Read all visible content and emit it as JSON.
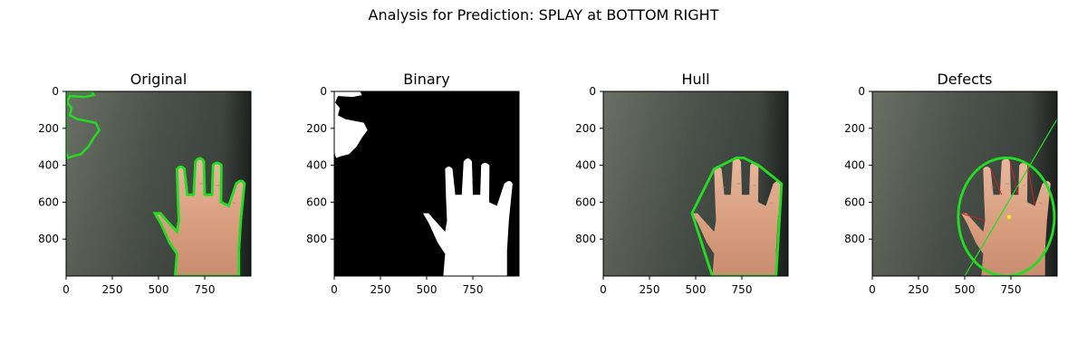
{
  "figure": {
    "suptitle": "Analysis for Prediction: SPLAY at BOTTOM RIGHT"
  },
  "chart_data": [
    {
      "type": "image",
      "title": "Original",
      "xlim": [
        0,
        1000
      ],
      "ylim": [
        1000,
        0
      ],
      "x_ticks": [
        0,
        250,
        500,
        750
      ],
      "y_ticks": [
        0,
        200,
        400,
        600,
        800
      ],
      "overlay": "contour",
      "overlay_color": "#22dd22"
    },
    {
      "type": "image",
      "title": "Binary",
      "xlim": [
        0,
        1000
      ],
      "ylim": [
        1000,
        0
      ],
      "x_ticks": [
        0,
        250,
        500,
        750
      ],
      "y_ticks": [
        0,
        200,
        400,
        600,
        800
      ],
      "overlay": "none",
      "overlay_color": "#ffffff"
    },
    {
      "type": "image",
      "title": "Hull",
      "xlim": [
        0,
        1000
      ],
      "ylim": [
        1000,
        0
      ],
      "x_ticks": [
        0,
        250,
        500,
        750
      ],
      "y_ticks": [
        0,
        200,
        400,
        600,
        800
      ],
      "overlay": "convex-hull",
      "overlay_color": "#22dd22"
    },
    {
      "type": "image",
      "title": "Defects",
      "xlim": [
        0,
        1000
      ],
      "ylim": [
        1000,
        0
      ],
      "x_ticks": [
        0,
        250,
        500,
        750
      ],
      "y_ticks": [
        0,
        200,
        400,
        600,
        800
      ],
      "overlay": "defects-ellipse",
      "overlay_color": "#22dd22",
      "ellipse": {
        "center": [
          725,
          680
        ],
        "radii": [
          260,
          320
        ]
      },
      "fit_line": [
        [
          500,
          1000
        ],
        [
          1000,
          150
        ]
      ],
      "center_point": [
        740,
        680
      ]
    }
  ]
}
